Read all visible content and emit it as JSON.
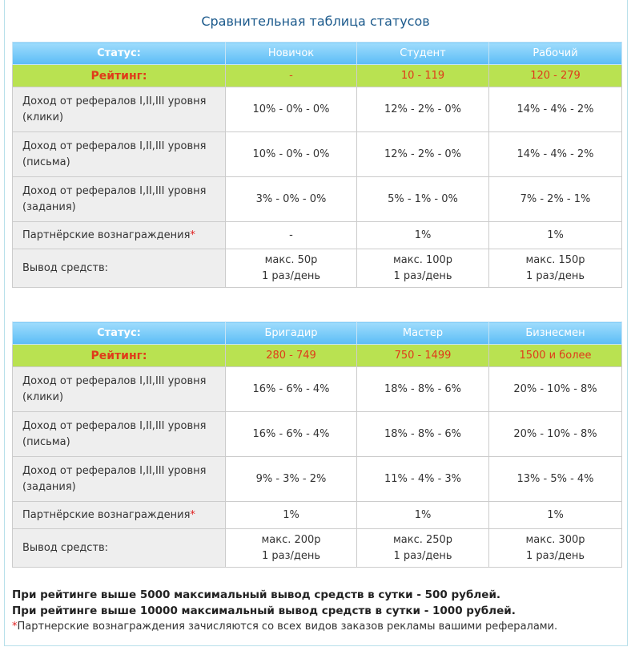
{
  "title": "Сравнительная таблица статусов",
  "tables": [
    {
      "status_label": "Статус:",
      "rating_label": "Рейтинг:",
      "statuses": [
        "Новичок",
        "Студент",
        "Рабочий"
      ],
      "ratings": [
        "-",
        "10 - 119",
        "120 - 279"
      ],
      "rows": [
        {
          "label": "Доход от рефералов I,II,III уровня (клики)",
          "values": [
            "10% - 0% - 0%",
            "12% - 2% - 0%",
            "14% - 4% - 2%"
          ]
        },
        {
          "label": "Доход от рефералов I,II,III уровня (письма)",
          "values": [
            "10% - 0% - 0%",
            "12% - 2% - 0%",
            "14% - 4% - 2%"
          ]
        },
        {
          "label": "Доход от рефералов I,II,III уровня (задания)",
          "values": [
            "3% - 0% - 0%",
            "5% - 1% - 0%",
            "7% - 2% - 1%"
          ]
        },
        {
          "label": "Партнёрские вознаграждения",
          "star": "*",
          "values": [
            "-",
            "1%",
            "1%"
          ]
        }
      ],
      "withdraw": {
        "label": "Вывод средств:",
        "max": [
          "макс. 50р",
          "макс. 100р",
          "макс. 150р"
        ],
        "freq": [
          "1 раз/день",
          "1 раз/день",
          "1 раз/день"
        ]
      }
    },
    {
      "status_label": "Статус:",
      "rating_label": "Рейтинг:",
      "statuses": [
        "Бригадир",
        "Мастер",
        "Бизнесмен"
      ],
      "ratings": [
        "280 - 749",
        "750 - 1499",
        "1500 и более"
      ],
      "rows": [
        {
          "label": "Доход от рефералов I,II,III уровня (клики)",
          "values": [
            "16% - 6% - 4%",
            "18% - 8% - 6%",
            "20% - 10% - 8%"
          ]
        },
        {
          "label": "Доход от рефералов I,II,III уровня (письма)",
          "values": [
            "16% - 6% - 4%",
            "18% - 8% - 6%",
            "20% - 10% - 8%"
          ]
        },
        {
          "label": "Доход от рефералов I,II,III уровня (задания)",
          "values": [
            "9% - 3% - 2%",
            "11% - 4% - 3%",
            "13% - 5% - 4%"
          ]
        },
        {
          "label": "Партнёрские вознаграждения",
          "star": "*",
          "values": [
            "1%",
            "1%",
            "1%"
          ]
        }
      ],
      "withdraw": {
        "label": "Вывод средств:",
        "max": [
          "макс. 200р",
          "макс. 250р",
          "макс. 300р"
        ],
        "freq": [
          "1 раз/день",
          "1 раз/день",
          "1 раз/день"
        ]
      }
    }
  ],
  "notes": {
    "line1": "При рейтинге выше 5000 максимальный вывод средств в сутки - 500 рублей.",
    "line2": "При рейтинге выше 10000 максимальный вывод средств в сутки - 1000 рублей.",
    "star": "*",
    "footnote": "Партнерские вознаграждения зачисляются со всех видов заказов рекламы вашими рефералами."
  },
  "colors": {
    "header": "#5bbcf6",
    "rating_row": "#b9e251",
    "rating_text": "#e03a1a",
    "title": "#1c5a8c"
  }
}
